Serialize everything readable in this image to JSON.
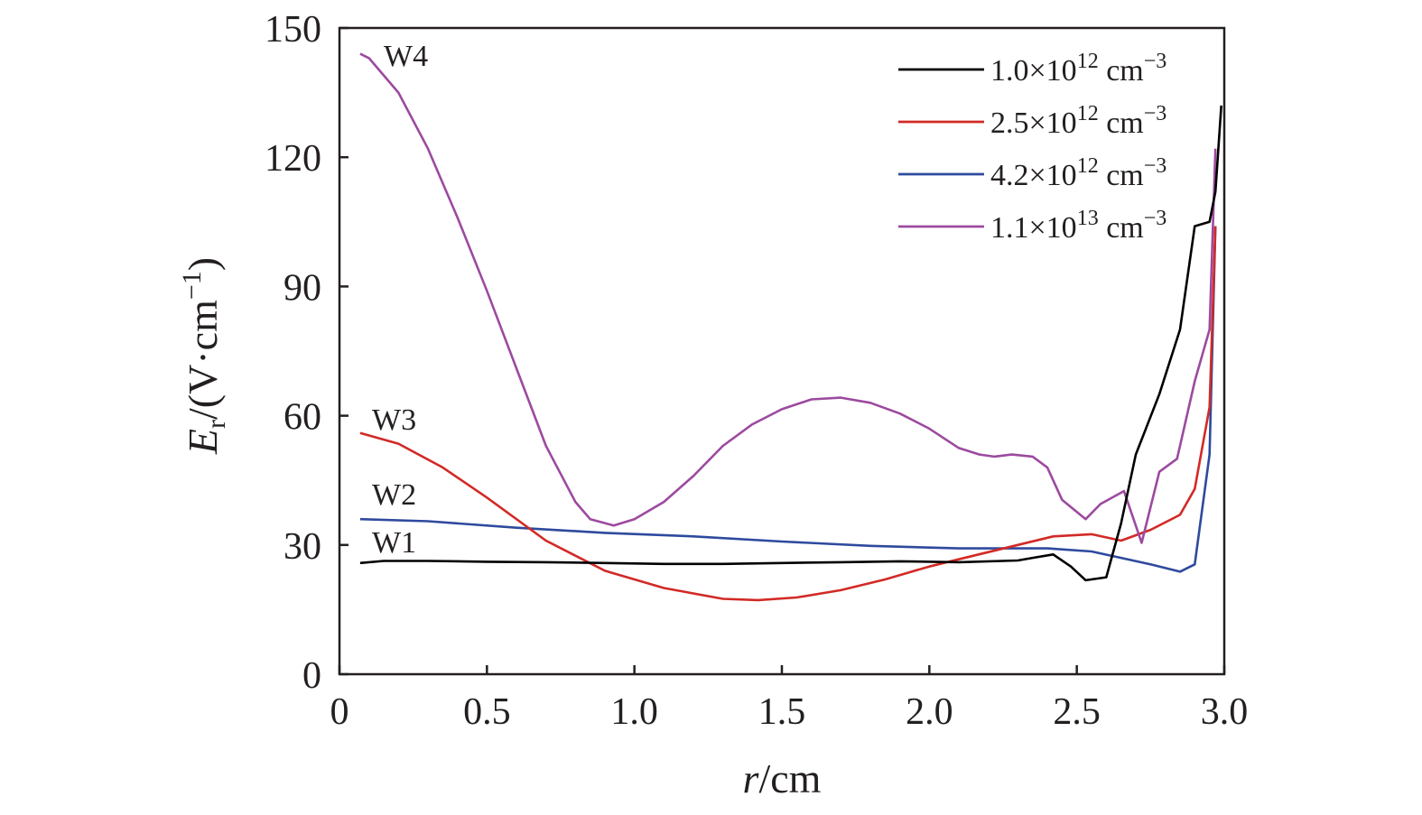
{
  "chart_data": {
    "type": "line",
    "xlabel": {
      "italic": "r",
      "rest": "/cm"
    },
    "ylabel": {
      "italic": "E",
      "sub": "r",
      "rest": "/(V·cm",
      "sup": "−1",
      "close": ")"
    },
    "xlim": [
      0,
      3.0
    ],
    "ylim": [
      0,
      150
    ],
    "x_ticks": [
      "0",
      "0.5",
      "1.0",
      "1.5",
      "2.0",
      "2.5",
      "3.0"
    ],
    "y_ticks": [
      "0",
      "30",
      "60",
      "90",
      "120",
      "150"
    ],
    "grid": false,
    "legend_position": "top-right",
    "series": [
      {
        "name": {
          "mant": "1.0×10",
          "exp": "12",
          "unit": " cm",
          "unitexp": "−3"
        },
        "label": "W1",
        "color": "#000000",
        "x": [
          0.07,
          0.15,
          0.3,
          0.5,
          0.7,
          0.9,
          1.1,
          1.3,
          1.5,
          1.7,
          1.9,
          2.1,
          2.3,
          2.35,
          2.42,
          2.48,
          2.53,
          2.6,
          2.65,
          2.7,
          2.78,
          2.85,
          2.9,
          2.95,
          2.97,
          2.99
        ],
        "y": [
          25.8,
          26.3,
          26.3,
          26.1,
          26.0,
          25.8,
          25.6,
          25.6,
          25.8,
          26.0,
          26.2,
          26.0,
          26.4,
          27.0,
          27.8,
          25.0,
          21.8,
          22.5,
          35.0,
          51.0,
          65.0,
          80.0,
          104.0,
          105.0,
          112.0,
          132.0
        ]
      },
      {
        "name": {
          "mant": "2.5×10",
          "exp": "12",
          "unit": " cm",
          "unitexp": "−3"
        },
        "label": "W3",
        "color": "#d22a26",
        "x": [
          0.07,
          0.2,
          0.35,
          0.5,
          0.7,
          0.9,
          1.1,
          1.3,
          1.42,
          1.55,
          1.7,
          1.85,
          2.0,
          2.15,
          2.3,
          2.42,
          2.55,
          2.65,
          2.75,
          2.85,
          2.9,
          2.95,
          2.97
        ],
        "y": [
          56.0,
          53.5,
          48.0,
          41.0,
          31.0,
          24.0,
          20.0,
          17.5,
          17.2,
          17.8,
          19.5,
          22.0,
          25.0,
          27.5,
          30.0,
          32.0,
          32.5,
          31.0,
          33.5,
          37.0,
          43.0,
          62.0,
          104.0
        ]
      },
      {
        "name": {
          "mant": "4.2×10",
          "exp": "12",
          "unit": " cm",
          "unitexp": "−3"
        },
        "label": "W2",
        "color": "#2e4a9e",
        "x": [
          0.07,
          0.3,
          0.6,
          0.9,
          1.2,
          1.5,
          1.8,
          2.1,
          2.4,
          2.55,
          2.65,
          2.75,
          2.85,
          2.9,
          2.95,
          2.97
        ],
        "y": [
          36.0,
          35.5,
          34.0,
          32.8,
          32.0,
          30.8,
          29.8,
          29.2,
          29.2,
          28.5,
          27.0,
          25.5,
          23.8,
          25.5,
          51.0,
          104.0
        ]
      },
      {
        "name": {
          "mant": "1.1×10",
          "exp": "13",
          "unit": " cm",
          "unitexp": "−3"
        },
        "label": "W4",
        "color": "#9c4a9f",
        "x": [
          0.07,
          0.1,
          0.2,
          0.3,
          0.4,
          0.5,
          0.6,
          0.7,
          0.8,
          0.85,
          0.93,
          1.0,
          1.1,
          1.2,
          1.3,
          1.4,
          1.5,
          1.6,
          1.7,
          1.8,
          1.9,
          2.0,
          2.1,
          2.17,
          2.22,
          2.28,
          2.35,
          2.4,
          2.45,
          2.53,
          2.58,
          2.66,
          2.72,
          2.78,
          2.84,
          2.9,
          2.95,
          2.97
        ],
        "y": [
          144.0,
          143.0,
          135.0,
          122.0,
          106.0,
          89.0,
          71.0,
          53.0,
          40.0,
          36.0,
          34.5,
          36.0,
          40.0,
          46.0,
          53.0,
          58.0,
          61.5,
          63.8,
          64.2,
          63.0,
          60.5,
          57.0,
          52.5,
          51.0,
          50.5,
          51.0,
          50.5,
          48.0,
          40.5,
          36.0,
          39.5,
          42.5,
          30.5,
          47.0,
          50.0,
          68.0,
          80.0,
          122.0
        ]
      }
    ]
  }
}
